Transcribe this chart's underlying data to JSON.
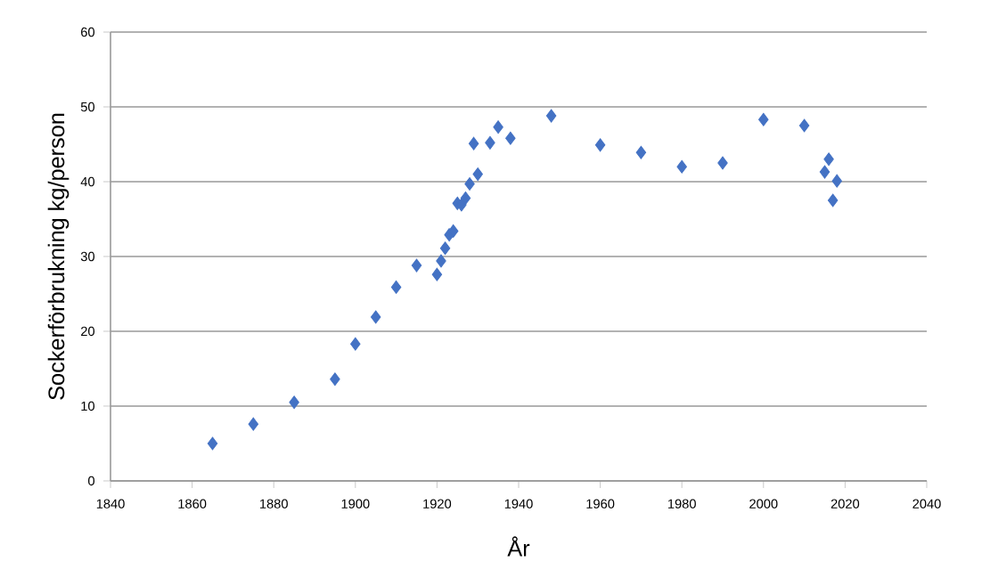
{
  "chart_data": {
    "type": "scatter",
    "xlabel": "År",
    "ylabel": "Sockerförbrukning kg/person",
    "x": [
      1865,
      1875,
      1885,
      1895,
      1900,
      1905,
      1910,
      1915,
      1920,
      1921,
      1922,
      1923,
      1924,
      1925,
      1926,
      1927,
      1928,
      1929,
      1930,
      1933,
      1935,
      1938,
      1948,
      1960,
      1970,
      1980,
      1990,
      2000,
      2010,
      2015,
      2016,
      2017,
      2018
    ],
    "values": [
      5,
      7.6,
      10.5,
      13.6,
      18.3,
      21.9,
      25.9,
      28.8,
      27.6,
      29.4,
      31.1,
      32.9,
      33.4,
      37.1,
      36.9,
      37.8,
      39.7,
      45.1,
      41,
      45.2,
      47.3,
      45.8,
      48.8,
      44.9,
      43.9,
      42,
      42.5,
      48.3,
      47.5,
      41.3,
      43,
      37.5,
      40.1
    ],
    "color": "#4472c4",
    "marker": "diamond",
    "grid": "y",
    "xlim": [
      1840,
      2040
    ],
    "xticks": [
      1840,
      1860,
      1880,
      1900,
      1920,
      1940,
      1960,
      1980,
      2000,
      2020,
      2040
    ],
    "ylim": [
      0,
      60
    ],
    "yticks": [
      0,
      10,
      20,
      30,
      40,
      50,
      60
    ]
  }
}
